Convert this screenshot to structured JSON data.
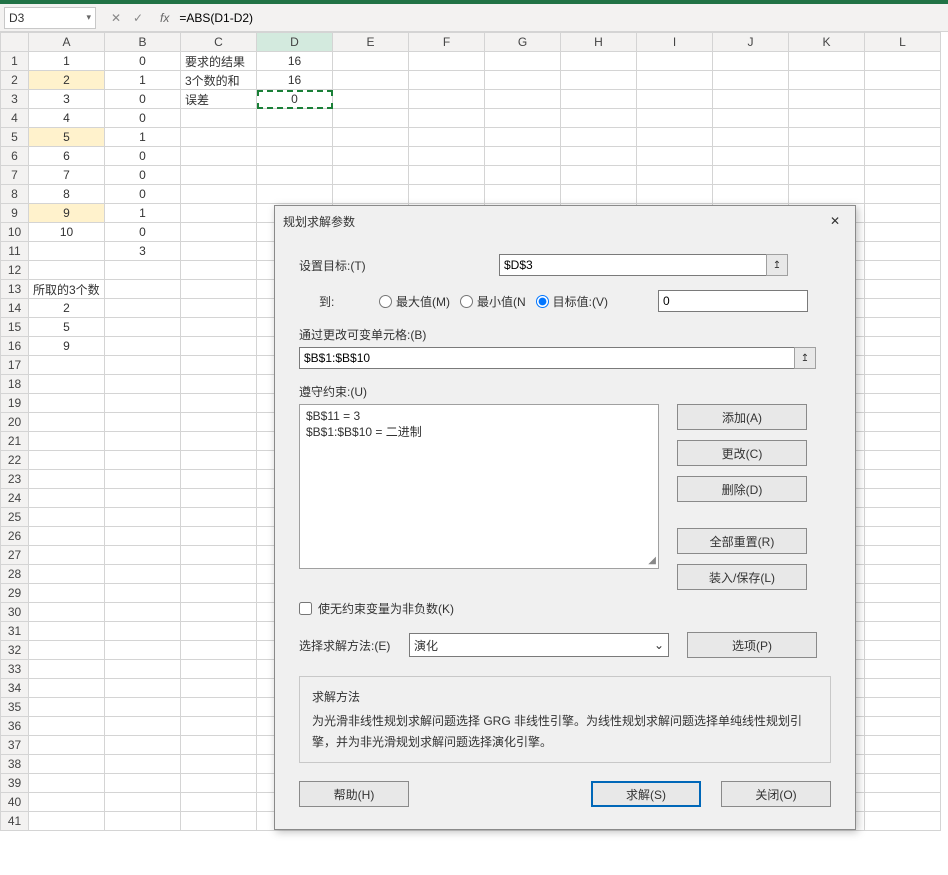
{
  "titlebar_color": "#217346",
  "namebox": {
    "value": "D3"
  },
  "formula": "=ABS(D1-D2)",
  "columns": [
    "A",
    "B",
    "C",
    "D",
    "E",
    "F",
    "G",
    "H",
    "I",
    "J",
    "K",
    "L"
  ],
  "active_col_index": 3,
  "active_row": 3,
  "highlight_rows": [
    2,
    5,
    9
  ],
  "rows": [
    {
      "r": 1,
      "A": "1",
      "B": "0",
      "C": "要求的结果",
      "D": "16"
    },
    {
      "r": 2,
      "A": "2",
      "B": "1",
      "C": "3个数的和",
      "D": "16"
    },
    {
      "r": 3,
      "A": "3",
      "B": "0",
      "C": "误差",
      "D": "0"
    },
    {
      "r": 4,
      "A": "4",
      "B": "0"
    },
    {
      "r": 5,
      "A": "5",
      "B": "1"
    },
    {
      "r": 6,
      "A": "6",
      "B": "0"
    },
    {
      "r": 7,
      "A": "7",
      "B": "0"
    },
    {
      "r": 8,
      "A": "8",
      "B": "0"
    },
    {
      "r": 9,
      "A": "9",
      "B": "1"
    },
    {
      "r": 10,
      "A": "10",
      "B": "0"
    },
    {
      "r": 11,
      "B": "3"
    },
    {
      "r": 12
    },
    {
      "r": 13,
      "A": "所取的3个数"
    },
    {
      "r": 14,
      "A": "2"
    },
    {
      "r": 15,
      "A": "5"
    },
    {
      "r": 16,
      "A": "9"
    }
  ],
  "total_rows": 41,
  "dialog": {
    "title": "规划求解参数",
    "set_target_label": "设置目标:(T)",
    "set_target_value": "$D$3",
    "to_label": "到:",
    "opt_max": "最大值(M)",
    "opt_min": "最小值(N",
    "opt_val": "目标值:(V)",
    "target_value": "0",
    "change_cells_label": "通过更改可变单元格:(B)",
    "change_cells_value": "$B$1:$B$10",
    "constraints_label": "遵守约束:(U)",
    "constraint1": "$B$11 = 3",
    "constraint2": "$B$1:$B$10 = 二进制",
    "btn_add": "添加(A)",
    "btn_change": "更改(C)",
    "btn_delete": "删除(D)",
    "btn_reset": "全部重置(R)",
    "btn_loadsave": "装入/保存(L)",
    "chk_nonneg": "使无约束变量为非负数(K)",
    "method_label": "选择求解方法:(E)",
    "method_value": "演化",
    "btn_options": "选项(P)",
    "method_box_title": "求解方法",
    "method_box_text": "为光滑非线性规划求解问题选择 GRG 非线性引擎。为线性规划求解问题选择单纯线性规划引擎，并为非光滑规划求解问题选择演化引擎。",
    "btn_help": "帮助(H)",
    "btn_solve": "求解(S)",
    "btn_close": "关闭(O)"
  }
}
